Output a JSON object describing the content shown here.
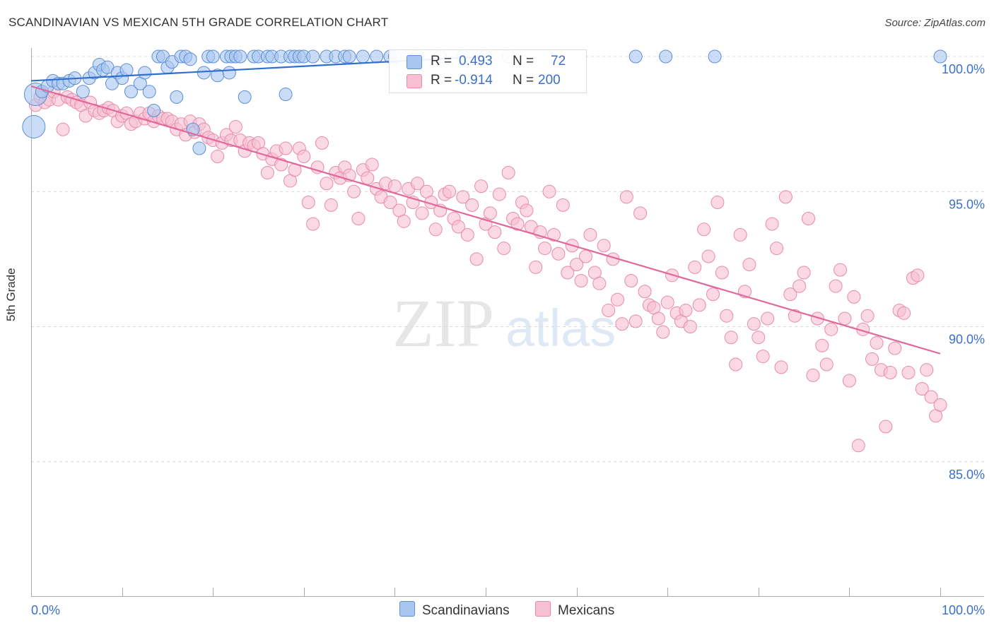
{
  "title": "SCANDINAVIAN VS MEXICAN 5TH GRADE CORRELATION CHART",
  "source": "Source: ZipAtlas.com",
  "watermark": {
    "zip": "ZIP",
    "atlas": "atlas"
  },
  "legend": {
    "blue": {
      "r_label": "R = ",
      "r_value": "0.493",
      "n_label": "N = ",
      "n_value": "72"
    },
    "pink": {
      "r_label": "R = ",
      "r_value": "-0.914",
      "n_label": "N = ",
      "n_value": "200"
    }
  },
  "bottom_legend": {
    "scandinavians": "Scandinavians",
    "mexicans": "Mexicans"
  },
  "colors": {
    "blue_fill": "#a8c6f0",
    "blue_stroke": "#5b8fd6",
    "blue_line": "#2f6fcf",
    "pink_fill": "#f7bfd2",
    "pink_stroke": "#e98aaa",
    "pink_line": "#e0689a",
    "axis_text": "#3b6fc9",
    "grid": "#d9d9d9"
  },
  "chart_data": {
    "type": "scatter",
    "title": "SCANDINAVIAN VS MEXICAN 5TH GRADE CORRELATION CHART",
    "xlabel": "",
    "ylabel": "5th Grade",
    "xlim": [
      0,
      100
    ],
    "ylim": [
      80.5,
      100.5
    ],
    "x_tick_labels": [
      "0.0%",
      "100.0%"
    ],
    "y_ticks": [
      85,
      90,
      95,
      100
    ],
    "y_tick_labels": [
      "85.0%",
      "90.0%",
      "95.0%",
      "100.0%"
    ],
    "series": [
      {
        "name": "Scandinavians",
        "R": 0.493,
        "N": 72,
        "trend": {
          "x": [
            0,
            50
          ],
          "y": [
            99.1,
            100.0
          ]
        },
        "points": [
          [
            0.3,
            97.4
          ],
          [
            0.5,
            98.6
          ],
          [
            1.2,
            98.7
          ],
          [
            1.8,
            98.9
          ],
          [
            2.4,
            99.1
          ],
          [
            3.0,
            99.0
          ],
          [
            3.5,
            99.0
          ],
          [
            4.2,
            99.1
          ],
          [
            4.8,
            99.2
          ],
          [
            5.7,
            98.7
          ],
          [
            6.4,
            99.2
          ],
          [
            7.0,
            99.4
          ],
          [
            7.5,
            99.7
          ],
          [
            7.9,
            99.5
          ],
          [
            8.4,
            99.6
          ],
          [
            8.9,
            99.0
          ],
          [
            9.5,
            99.4
          ],
          [
            10.0,
            99.2
          ],
          [
            10.5,
            99.5
          ],
          [
            11.0,
            98.7
          ],
          [
            12.0,
            99.0
          ],
          [
            12.5,
            99.4
          ],
          [
            13.0,
            98.7
          ],
          [
            13.5,
            98.0
          ],
          [
            14.0,
            100.0
          ],
          [
            14.5,
            100.0
          ],
          [
            15.0,
            99.6
          ],
          [
            15.5,
            99.8
          ],
          [
            16.0,
            98.5
          ],
          [
            16.5,
            100.0
          ],
          [
            17.0,
            100.0
          ],
          [
            17.5,
            99.9
          ],
          [
            17.8,
            97.3
          ],
          [
            18.5,
            96.6
          ],
          [
            19.0,
            99.4
          ],
          [
            19.5,
            100.0
          ],
          [
            20.0,
            100.0
          ],
          [
            20.5,
            99.3
          ],
          [
            21.5,
            100.0
          ],
          [
            21.8,
            99.4
          ],
          [
            22.0,
            100.0
          ],
          [
            22.5,
            100.0
          ],
          [
            23.0,
            100.0
          ],
          [
            23.5,
            98.5
          ],
          [
            24.5,
            100.0
          ],
          [
            25.0,
            100.0
          ],
          [
            26.0,
            100.0
          ],
          [
            26.5,
            100.0
          ],
          [
            27.5,
            100.0
          ],
          [
            28.0,
            98.6
          ],
          [
            28.5,
            100.0
          ],
          [
            29.0,
            100.0
          ],
          [
            29.5,
            100.0
          ],
          [
            30.0,
            100.0
          ],
          [
            31.0,
            100.0
          ],
          [
            32.5,
            100.0
          ],
          [
            33.5,
            100.0
          ],
          [
            34.5,
            100.0
          ],
          [
            35.0,
            100.0
          ],
          [
            36.5,
            100.0
          ],
          [
            38.0,
            100.0
          ],
          [
            39.5,
            100.0
          ],
          [
            40.0,
            100.0
          ],
          [
            42.5,
            100.0
          ],
          [
            45.0,
            100.0
          ],
          [
            47.5,
            100.0
          ],
          [
            50.0,
            100.0
          ],
          [
            52.5,
            100.0
          ],
          [
            66.5,
            100.0
          ],
          [
            69.8,
            100.0
          ],
          [
            75.2,
            100.0
          ],
          [
            100.0,
            100.0
          ]
        ]
      },
      {
        "name": "Mexicans",
        "R": -0.914,
        "N": 200,
        "trend": {
          "x": [
            0,
            100
          ],
          "y": [
            98.9,
            89.0
          ]
        },
        "points": [
          [
            0.5,
            98.2
          ],
          [
            1.0,
            98.5
          ],
          [
            1.5,
            98.3
          ],
          [
            2.0,
            98.4
          ],
          [
            2.5,
            98.7
          ],
          [
            3.0,
            98.4
          ],
          [
            3.5,
            97.3
          ],
          [
            4.0,
            98.5
          ],
          [
            4.5,
            98.4
          ],
          [
            5.0,
            98.3
          ],
          [
            5.5,
            98.2
          ],
          [
            6.0,
            97.8
          ],
          [
            6.5,
            98.3
          ],
          [
            7.0,
            98.0
          ],
          [
            7.5,
            97.9
          ],
          [
            8.0,
            98.0
          ],
          [
            8.5,
            98.1
          ],
          [
            9.0,
            98.0
          ],
          [
            9.5,
            97.6
          ],
          [
            10.0,
            97.8
          ],
          [
            10.5,
            97.9
          ],
          [
            11.0,
            97.5
          ],
          [
            11.5,
            97.6
          ],
          [
            12.0,
            97.9
          ],
          [
            12.5,
            97.7
          ],
          [
            13.0,
            97.9
          ],
          [
            13.5,
            97.6
          ],
          [
            14.0,
            97.8
          ],
          [
            14.5,
            97.7
          ],
          [
            15.0,
            97.7
          ],
          [
            15.5,
            97.6
          ],
          [
            16.0,
            97.3
          ],
          [
            16.5,
            97.5
          ],
          [
            17.0,
            97.1
          ],
          [
            17.5,
            97.6
          ],
          [
            18.0,
            97.2
          ],
          [
            18.5,
            97.5
          ],
          [
            19.0,
            97.3
          ],
          [
            19.5,
            97.0
          ],
          [
            20.0,
            96.9
          ],
          [
            20.5,
            96.3
          ],
          [
            21.0,
            96.8
          ],
          [
            21.5,
            97.1
          ],
          [
            22.0,
            96.9
          ],
          [
            22.5,
            97.4
          ],
          [
            23.0,
            96.9
          ],
          [
            23.5,
            96.5
          ],
          [
            24.0,
            96.8
          ],
          [
            24.5,
            96.7
          ],
          [
            25.0,
            96.8
          ],
          [
            25.5,
            96.4
          ],
          [
            26.0,
            95.7
          ],
          [
            26.5,
            96.2
          ],
          [
            27.0,
            96.5
          ],
          [
            27.5,
            96.0
          ],
          [
            28.0,
            96.6
          ],
          [
            28.5,
            95.4
          ],
          [
            29.0,
            95.8
          ],
          [
            29.5,
            96.6
          ],
          [
            30.0,
            96.3
          ],
          [
            30.5,
            94.6
          ],
          [
            31.0,
            93.8
          ],
          [
            31.5,
            95.9
          ],
          [
            32.0,
            96.8
          ],
          [
            32.5,
            95.3
          ],
          [
            33.0,
            94.5
          ],
          [
            33.5,
            95.7
          ],
          [
            34.0,
            95.5
          ],
          [
            34.5,
            95.9
          ],
          [
            35.0,
            95.6
          ],
          [
            35.5,
            95.0
          ],
          [
            36.0,
            94.0
          ],
          [
            36.5,
            95.8
          ],
          [
            37.0,
            95.5
          ],
          [
            37.5,
            96.0
          ],
          [
            38.0,
            95.1
          ],
          [
            38.5,
            94.8
          ],
          [
            39.0,
            95.3
          ],
          [
            39.5,
            94.6
          ],
          [
            40.0,
            95.2
          ],
          [
            40.5,
            94.3
          ],
          [
            41.0,
            93.9
          ],
          [
            41.5,
            95.1
          ],
          [
            42.0,
            94.6
          ],
          [
            42.5,
            95.3
          ],
          [
            43.0,
            94.2
          ],
          [
            43.5,
            95.0
          ],
          [
            44.0,
            94.6
          ],
          [
            44.5,
            93.6
          ],
          [
            45.0,
            94.3
          ],
          [
            45.5,
            94.9
          ],
          [
            46.0,
            95.0
          ],
          [
            46.5,
            94.0
          ],
          [
            47.0,
            93.7
          ],
          [
            47.5,
            94.8
          ],
          [
            48.0,
            93.4
          ],
          [
            48.5,
            94.5
          ],
          [
            49.0,
            92.5
          ],
          [
            49.5,
            95.2
          ],
          [
            50.0,
            93.8
          ],
          [
            50.5,
            94.2
          ],
          [
            51.0,
            93.5
          ],
          [
            51.5,
            94.9
          ],
          [
            52.0,
            92.9
          ],
          [
            52.5,
            95.7
          ],
          [
            53.0,
            94.0
          ],
          [
            53.5,
            93.8
          ],
          [
            54.0,
            94.6
          ],
          [
            54.5,
            94.3
          ],
          [
            55.0,
            93.7
          ],
          [
            55.5,
            92.2
          ],
          [
            56.0,
            93.5
          ],
          [
            56.5,
            92.9
          ],
          [
            57.0,
            95.0
          ],
          [
            57.5,
            93.4
          ],
          [
            58.0,
            92.7
          ],
          [
            58.5,
            94.5
          ],
          [
            59.0,
            92.0
          ],
          [
            59.5,
            93.0
          ],
          [
            60.0,
            92.3
          ],
          [
            60.5,
            91.7
          ],
          [
            61.0,
            92.6
          ],
          [
            61.5,
            93.4
          ],
          [
            62.0,
            92.0
          ],
          [
            62.5,
            91.6
          ],
          [
            63.0,
            93.0
          ],
          [
            63.5,
            90.6
          ],
          [
            64.0,
            92.5
          ],
          [
            64.5,
            91.0
          ],
          [
            65.0,
            90.1
          ],
          [
            65.5,
            94.8
          ],
          [
            66.0,
            91.7
          ],
          [
            66.5,
            90.2
          ],
          [
            67.0,
            94.2
          ],
          [
            67.5,
            91.3
          ],
          [
            68.0,
            90.8
          ],
          [
            68.5,
            90.7
          ],
          [
            69.0,
            90.3
          ],
          [
            69.5,
            89.8
          ],
          [
            70.0,
            90.9
          ],
          [
            70.5,
            91.9
          ],
          [
            71.0,
            90.5
          ],
          [
            71.5,
            90.2
          ],
          [
            72.0,
            90.6
          ],
          [
            72.5,
            90.0
          ],
          [
            73.0,
            92.2
          ],
          [
            73.5,
            90.8
          ],
          [
            74.0,
            93.6
          ],
          [
            74.5,
            92.6
          ],
          [
            75.0,
            91.2
          ],
          [
            75.5,
            94.6
          ],
          [
            76.0,
            92.0
          ],
          [
            76.5,
            90.4
          ],
          [
            77.0,
            89.6
          ],
          [
            77.5,
            88.6
          ],
          [
            78.0,
            93.4
          ],
          [
            78.5,
            91.3
          ],
          [
            79.0,
            92.3
          ],
          [
            79.5,
            90.1
          ],
          [
            80.0,
            89.6
          ],
          [
            80.5,
            88.9
          ],
          [
            81.0,
            90.3
          ],
          [
            81.5,
            93.8
          ],
          [
            82.0,
            92.9
          ],
          [
            82.5,
            88.5
          ],
          [
            83.0,
            94.8
          ],
          [
            83.5,
            91.2
          ],
          [
            84.0,
            90.4
          ],
          [
            84.5,
            91.5
          ],
          [
            85.0,
            92.0
          ],
          [
            85.5,
            94.0
          ],
          [
            86.0,
            88.2
          ],
          [
            86.5,
            90.3
          ],
          [
            87.0,
            89.3
          ],
          [
            87.5,
            88.6
          ],
          [
            88.0,
            89.9
          ],
          [
            88.5,
            91.5
          ],
          [
            89.0,
            92.1
          ],
          [
            89.5,
            90.3
          ],
          [
            90.0,
            88.0
          ],
          [
            90.5,
            91.1
          ],
          [
            91.0,
            85.6
          ],
          [
            91.5,
            89.9
          ],
          [
            92.0,
            90.4
          ],
          [
            92.5,
            88.8
          ],
          [
            93.0,
            89.4
          ],
          [
            93.5,
            88.4
          ],
          [
            94.0,
            86.3
          ],
          [
            94.5,
            88.3
          ],
          [
            95.0,
            89.2
          ],
          [
            95.5,
            90.6
          ],
          [
            96.0,
            90.5
          ],
          [
            96.5,
            88.3
          ],
          [
            97.0,
            91.8
          ],
          [
            97.5,
            91.9
          ],
          [
            98.0,
            87.7
          ],
          [
            98.5,
            88.4
          ],
          [
            99.0,
            87.4
          ],
          [
            99.5,
            86.7
          ],
          [
            100.0,
            87.1
          ]
        ]
      }
    ]
  }
}
